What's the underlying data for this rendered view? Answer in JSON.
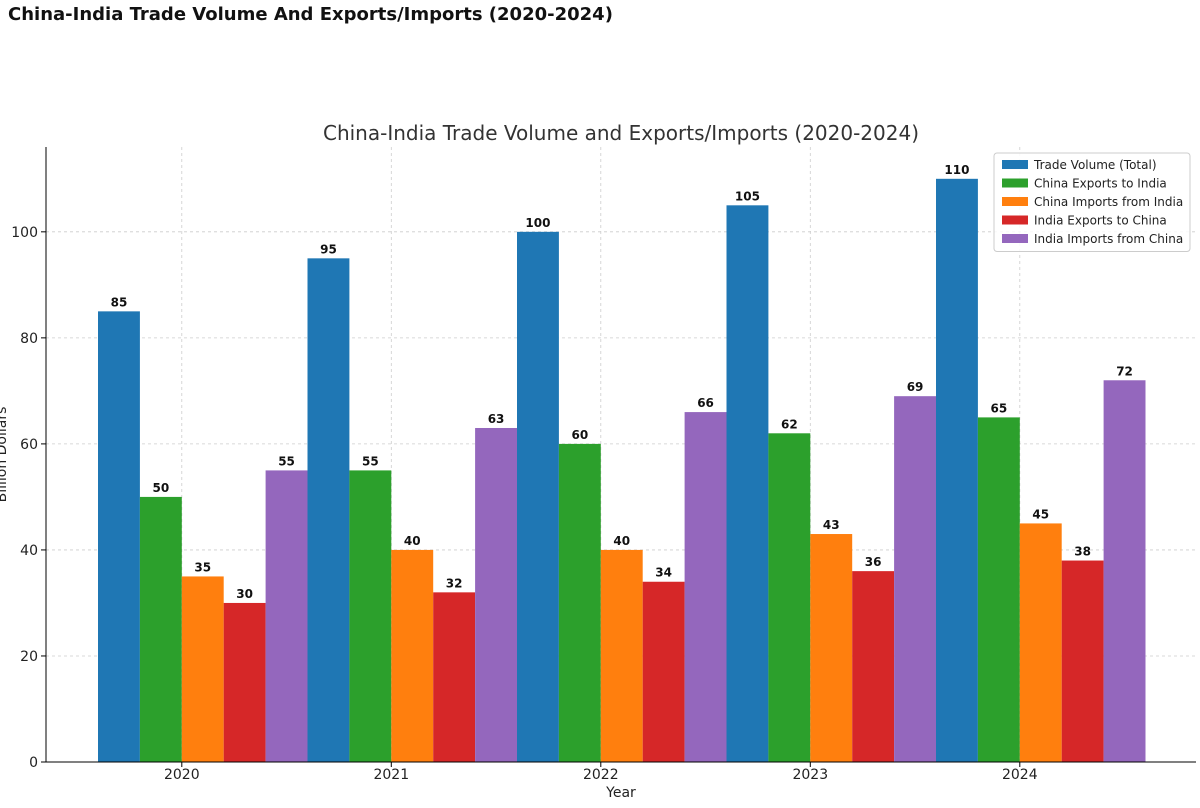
{
  "page": {
    "heading": "China-India Trade Volume And Exports/Imports (2020-2024)"
  },
  "chart_data": {
    "type": "bar",
    "title": "China-India Trade Volume and Exports/Imports (2020-2024)",
    "xlabel": "Year",
    "ylabel": "Billion Dollars",
    "ylim": [
      0,
      116
    ],
    "yticks": [
      0,
      20,
      40,
      60,
      80,
      100
    ],
    "grid": true,
    "legend_position": "top-right",
    "categories": [
      "2020",
      "2021",
      "2022",
      "2023",
      "2024"
    ],
    "series": [
      {
        "name": "Trade Volume (Total)",
        "color": "#1f77b4",
        "values": [
          85,
          95,
          100,
          105,
          110
        ]
      },
      {
        "name": "China Exports to India",
        "color": "#2ca02c",
        "values": [
          50,
          55,
          60,
          62,
          65
        ]
      },
      {
        "name": "China Imports from India",
        "color": "#ff7f0e",
        "values": [
          35,
          40,
          40,
          43,
          45
        ]
      },
      {
        "name": "India Exports to China",
        "color": "#d62728",
        "values": [
          30,
          32,
          34,
          36,
          38
        ]
      },
      {
        "name": "India Imports from China",
        "color": "#9467bd",
        "values": [
          55,
          63,
          66,
          69,
          72
        ]
      }
    ]
  }
}
